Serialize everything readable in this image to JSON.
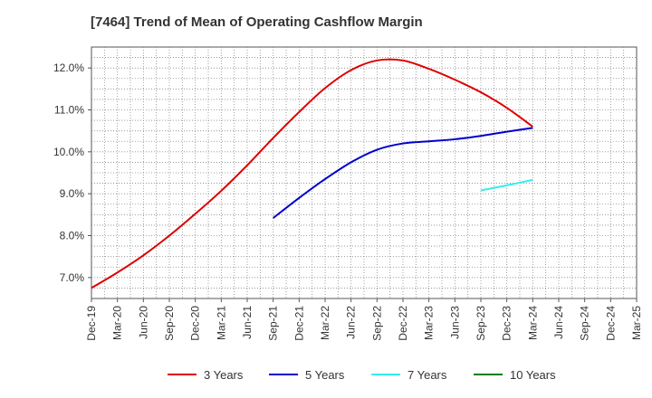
{
  "chart_data": {
    "type": "line",
    "title": "[7464]  Trend of Mean of Operating Cashflow Margin",
    "x": [
      "Dec-19",
      "Mar-20",
      "Jun-20",
      "Sep-20",
      "Dec-20",
      "Mar-21",
      "Jun-21",
      "Sep-21",
      "Dec-21",
      "Mar-22",
      "Jun-22",
      "Sep-22",
      "Dec-22",
      "Mar-23",
      "Jun-23",
      "Sep-23",
      "Dec-23",
      "Mar-24",
      "Jun-24",
      "Sep-24",
      "Dec-24",
      "Mar-25"
    ],
    "ylim": [
      6.5,
      12.5
    ],
    "yticks": [
      7.0,
      8.0,
      9.0,
      10.0,
      11.0,
      12.0
    ],
    "ytick_labels": [
      "7.0%",
      "8.0%",
      "9.0%",
      "10.0%",
      "11.0%",
      "12.0%"
    ],
    "grid": true,
    "legend_position": "bottom",
    "series": [
      {
        "name": "3 Years",
        "color": "#dd0000",
        "values": [
          6.75,
          7.12,
          7.53,
          8.0,
          8.52,
          9.07,
          9.68,
          10.33,
          10.95,
          11.52,
          11.95,
          12.18,
          12.18,
          11.98,
          11.72,
          11.42,
          11.05,
          10.6,
          null,
          null,
          null,
          null
        ]
      },
      {
        "name": "5 Years",
        "color": "#0000cc",
        "values": [
          null,
          null,
          null,
          null,
          null,
          null,
          null,
          8.42,
          8.9,
          9.35,
          9.75,
          10.05,
          10.2,
          10.25,
          10.3,
          10.38,
          10.48,
          10.57,
          null,
          null,
          null,
          null
        ]
      },
      {
        "name": "7 Years",
        "color": "#33eeee",
        "values": [
          null,
          null,
          null,
          null,
          null,
          null,
          null,
          null,
          null,
          null,
          null,
          null,
          null,
          null,
          null,
          9.08,
          9.2,
          9.33,
          null,
          null,
          null,
          null
        ]
      },
      {
        "name": "10 Years",
        "color": "#008000",
        "values": [
          null,
          null,
          null,
          null,
          null,
          null,
          null,
          null,
          null,
          null,
          null,
          null,
          null,
          null,
          null,
          null,
          null,
          null,
          null,
          null,
          null,
          null
        ]
      }
    ]
  }
}
